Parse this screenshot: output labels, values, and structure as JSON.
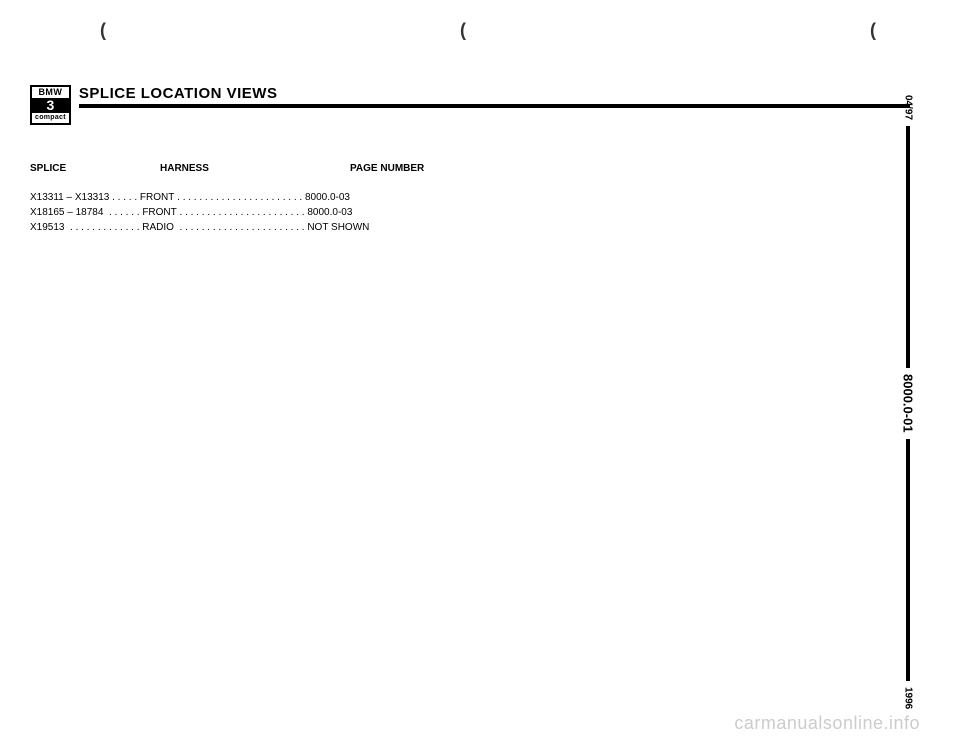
{
  "scan_marks": {
    "left": "(",
    "mid": "(",
    "right": "("
  },
  "badge": {
    "top": "BMW",
    "mid": "3",
    "bottom": "compact"
  },
  "title": "SPLICE LOCATION VIEWS",
  "headers": {
    "splice": "SPLICE",
    "harness": "HARNESS",
    "page": "PAGE NUMBER"
  },
  "rows": [
    {
      "splice": "X13311 – X13313",
      "harness": "FRONT",
      "page": "8000.0-03"
    },
    {
      "splice": "X18165 – 18784",
      "harness": "FRONT",
      "page": "8000.0-03"
    },
    {
      "splice": "X19513",
      "harness": "RADIO",
      "page": "NOT SHOWN"
    }
  ],
  "rail": {
    "date": "04/97",
    "page": "8000.0-01",
    "year": "1996"
  },
  "watermark": "carmanualsonline.info",
  "dots": {
    "r0s": " . . . . . ",
    "r0h": " . . . . . . . . . . . . . . . . . . . . . . . ",
    "r1s": "  . . . . . . ",
    "r1h": " . . . . . . . . . . . . . . . . . . . . . . . ",
    "r2s": "  . . . . . . . . . . . . . ",
    "r2h": "  . . . . . . . . . . . . . . . . . . . . . . . "
  }
}
